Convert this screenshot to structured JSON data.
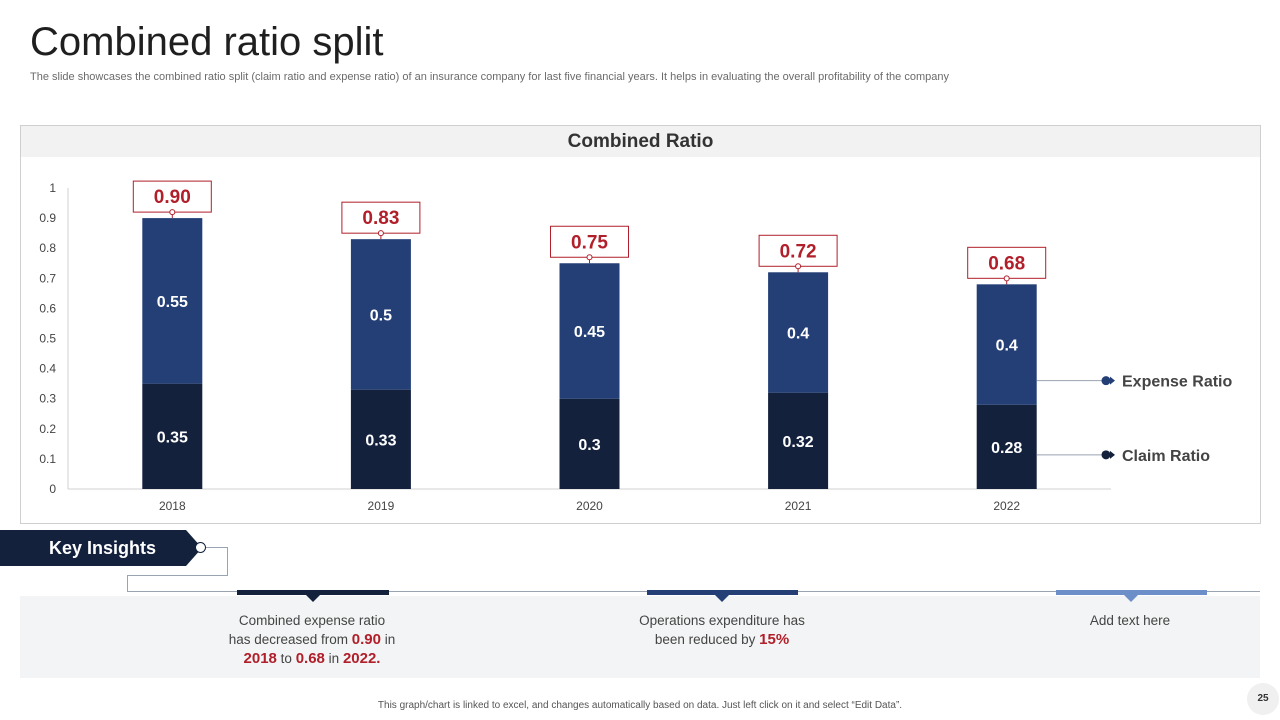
{
  "slide": {
    "title": "Combined ratio split",
    "subtitle": "The slide showcases the combined ratio split (claim ratio and expense ratio) of an insurance company for last five financial years. It helps in evaluating the overall profitability of the company",
    "footer": "This graph/chart is linked to excel, and changes automatically based on data. Just left click on it and select “Edit Data”.",
    "page_number": "25"
  },
  "chart_data": {
    "type": "bar",
    "stacked": true,
    "title": "Combined Ratio",
    "categories": [
      "2018",
      "2019",
      "2020",
      "2021",
      "2022"
    ],
    "series": [
      {
        "name": "Claim Ratio",
        "values": [
          0.35,
          0.33,
          0.3,
          0.32,
          0.28
        ],
        "color": "#13213d"
      },
      {
        "name": "Expense Ratio",
        "values": [
          0.55,
          0.5,
          0.45,
          0.4,
          0.4
        ],
        "color": "#233f76"
      }
    ],
    "totals": [
      "0.90",
      "0.83",
      "0.75",
      "0.72",
      "0.68"
    ],
    "ylim": [
      0,
      1
    ],
    "yticks": [
      "0",
      "0.1",
      "0.2",
      "0.3",
      "0.4",
      "0.5",
      "0.6",
      "0.7",
      "0.8",
      "0.9",
      "1"
    ],
    "xlabel": "",
    "ylabel": "",
    "grid": false,
    "legend": "right",
    "total_label_color": "#b01f2a"
  },
  "insights": {
    "heading": "Key Insights",
    "items": [
      {
        "line1": "Combined expense ratio",
        "line2_pre": "has decreased from",
        "v1": "0.90",
        "in1": "in",
        "y1": "2018",
        "to": "to",
        "v2": "0.68",
        "in2": "in",
        "y2": "2022.",
        "accent": "#13213d"
      },
      {
        "line1": "Operations expenditure has",
        "line2_pre": "been reduced by",
        "value": "15%",
        "accent": "#233f76"
      },
      {
        "line1": "Add text here",
        "accent": "#6c8fc9"
      }
    ]
  }
}
